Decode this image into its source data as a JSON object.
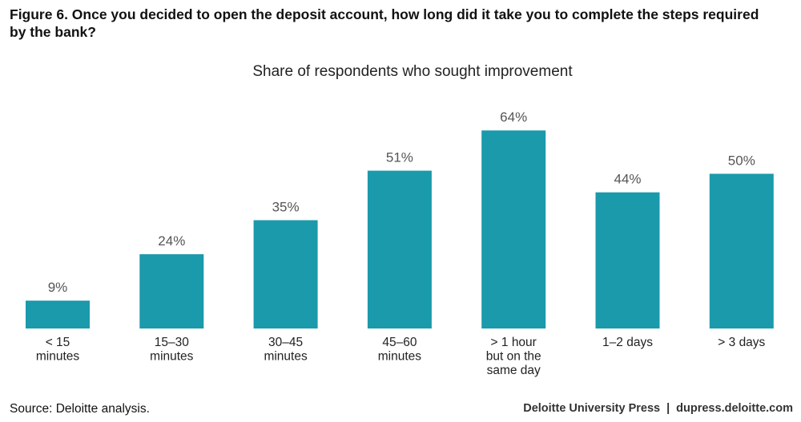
{
  "figure": {
    "title": "Figure 6. Once you decided to open the deposit account, how long did it take you to complete the steps required by the bank?"
  },
  "chart_data": {
    "type": "bar",
    "title": "Share of respondents who sought improvement",
    "categories": [
      [
        "< 15",
        "minutes"
      ],
      [
        "15–30",
        "minutes"
      ],
      [
        "30–45",
        "minutes"
      ],
      [
        "45–60",
        "minutes"
      ],
      [
        "> 1 hour",
        "but on the",
        "same day"
      ],
      [
        "1–2 days"
      ],
      [
        "> 3 days"
      ]
    ],
    "values": [
      9,
      24,
      35,
      51,
      64,
      44,
      50
    ],
    "value_labels": [
      "9%",
      "24%",
      "35%",
      "51%",
      "64%",
      "44%",
      "50%"
    ],
    "ylim": [
      0,
      70
    ],
    "grid": false,
    "bar_color": "#1a9aab",
    "label_color": "#555555"
  },
  "footer": {
    "source": "Source: Deloitte analysis.",
    "publisher": "Deloitte University Press",
    "separator": "|",
    "url": "dupress.deloitte.com"
  }
}
